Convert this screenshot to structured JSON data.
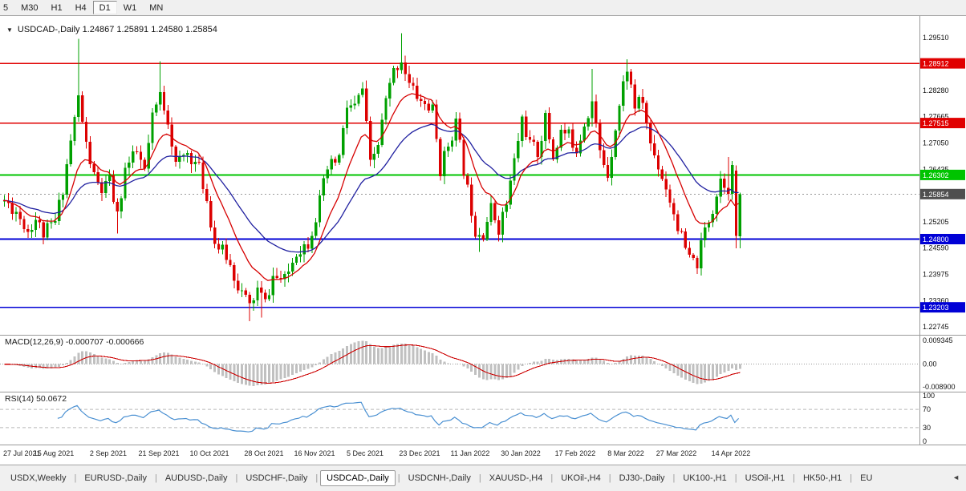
{
  "toolbar": {
    "periods": [
      {
        "label": "5",
        "active": false
      },
      {
        "label": "M30",
        "active": false
      },
      {
        "label": "H1",
        "active": false
      },
      {
        "label": "H4",
        "active": false
      },
      {
        "label": "D1",
        "active": true
      },
      {
        "label": "W1",
        "active": false
      },
      {
        "label": "MN",
        "active": false
      }
    ]
  },
  "symbol_overlay": {
    "collapse_icon": "▼",
    "text": "USDCAD-,Daily 1.24867 1.25891 1.24580 1.25854"
  },
  "indicators": {
    "macd_label": "MACD(12,26,9) -0.000707 -0.000666",
    "rsi_label": "RSI(14) 50.0672"
  },
  "chart_data": {
    "type": "candlestick",
    "symbol": "USDCAD-,Daily",
    "current_bar_ohlc": {
      "open": 1.24867,
      "high": 1.25891,
      "low": 1.2458,
      "close": 1.25854
    },
    "candle_count": 190,
    "seed": 11,
    "price_axis": {
      "min": 1.2256,
      "max": 1.3002,
      "tick_start": 1.2951,
      "tick_step": 0.00615,
      "tick_count": 12
    },
    "x_labels": [
      "27 Jul 2021",
      "15 Aug 2021",
      "2 Sep 2021",
      "21 Sep 2021",
      "10 Oct 2021",
      "28 Oct 2021",
      "16 Nov 2021",
      "5 Dec 2021",
      "23 Dec 2021",
      "11 Jan 2022",
      "30 Jan 2022",
      "17 Feb 2022",
      "8 Mar 2022",
      "27 Mar 2022",
      "14 Apr 2022"
    ],
    "x_label_indices": [
      0,
      13,
      27,
      40,
      53,
      67,
      80,
      93,
      107,
      120,
      133,
      147,
      160,
      173,
      187
    ],
    "close_anchors": [
      [
        0,
        1.257
      ],
      [
        3,
        1.2545
      ],
      [
        6,
        1.25
      ],
      [
        8,
        1.2528
      ],
      [
        10,
        1.2492
      ],
      [
        13,
        1.252
      ],
      [
        15,
        1.26
      ],
      [
        17,
        1.271
      ],
      [
        19,
        1.2812
      ],
      [
        21,
        1.27
      ],
      [
        23,
        1.2625
      ],
      [
        25,
        1.2592
      ],
      [
        27,
        1.2615
      ],
      [
        29,
        1.2532
      ],
      [
        31,
        1.2645
      ],
      [
        34,
        1.2682
      ],
      [
        36,
        1.2638
      ],
      [
        38,
        1.2762
      ],
      [
        40,
        1.2818
      ],
      [
        42,
        1.2762
      ],
      [
        44,
        1.2652
      ],
      [
        47,
        1.2682
      ],
      [
        50,
        1.2645
      ],
      [
        52,
        1.2572
      ],
      [
        54,
        1.2472
      ],
      [
        57,
        1.244
      ],
      [
        60,
        1.2372
      ],
      [
        63,
        1.2322
      ],
      [
        65,
        1.2362
      ],
      [
        67,
        1.233
      ],
      [
        69,
        1.2392
      ],
      [
        72,
        1.2382
      ],
      [
        75,
        1.2452
      ],
      [
        78,
        1.2472
      ],
      [
        80,
        1.2532
      ],
      [
        83,
        1.2642
      ],
      [
        86,
        1.2672
      ],
      [
        88,
        1.279
      ],
      [
        90,
        1.2788
      ],
      [
        92,
        1.2832
      ],
      [
        94,
        1.2652
      ],
      [
        96,
        1.2702
      ],
      [
        98,
        1.2802
      ],
      [
        100,
        1.2872
      ],
      [
        102,
        1.2902
      ],
      [
        104,
        1.2842
      ],
      [
        107,
        1.2802
      ],
      [
        110,
        1.2782
      ],
      [
        112,
        1.2642
      ],
      [
        114,
        1.2702
      ],
      [
        116,
        1.2752
      ],
      [
        118,
        1.2642
      ],
      [
        121,
        1.2502
      ],
      [
        123,
        1.2496
      ],
      [
        125,
        1.2552
      ],
      [
        127,
        1.2506
      ],
      [
        129,
        1.2562
      ],
      [
        131,
        1.2662
      ],
      [
        133,
        1.2762
      ],
      [
        135,
        1.2702
      ],
      [
        137,
        1.2682
      ],
      [
        139,
        1.2762
      ],
      [
        141,
        1.2672
      ],
      [
        143,
        1.2732
      ],
      [
        145,
        1.2722
      ],
      [
        147,
        1.2692
      ],
      [
        149,
        1.2752
      ],
      [
        151,
        1.2802
      ],
      [
        153,
        1.2682
      ],
      [
        155,
        1.2632
      ],
      [
        157,
        1.2742
      ],
      [
        159,
        1.2842
      ],
      [
        160,
        1.2882
      ],
      [
        162,
        1.2792
      ],
      [
        164,
        1.2802
      ],
      [
        166,
        1.2702
      ],
      [
        168,
        1.2652
      ],
      [
        170,
        1.2602
      ],
      [
        172,
        1.2542
      ],
      [
        174,
        1.2482
      ],
      [
        176,
        1.2432
      ],
      [
        178,
        1.2422
      ],
      [
        180,
        1.2502
      ],
      [
        182,
        1.2552
      ],
      [
        184,
        1.2622
      ],
      [
        186,
        1.2602
      ],
      [
        187,
        1.2642
      ],
      [
        188,
        1.2487
      ],
      [
        189,
        1.25854
      ]
    ],
    "spike_highs": [
      [
        19,
        1.2949
      ],
      [
        40,
        1.2896
      ],
      [
        102,
        1.2962
      ],
      [
        151,
        1.2878
      ],
      [
        160,
        1.2901
      ],
      [
        186,
        1.2672
      ]
    ],
    "spike_lows": [
      [
        29,
        1.2493
      ],
      [
        63,
        1.2288
      ],
      [
        66,
        1.2296
      ],
      [
        122,
        1.245
      ],
      [
        178,
        1.2398
      ]
    ],
    "final_candles": {
      "188": [
        1.264,
        1.2652,
        1.2458,
        1.2487
      ],
      "189": [
        1.24867,
        1.25891,
        1.2458,
        1.25854
      ]
    },
    "levels": [
      {
        "price": 1.28912,
        "label": "1.28912",
        "color": "#e00000",
        "width": 1.4
      },
      {
        "price": 1.27515,
        "label": "1.27515",
        "color": "#e00000",
        "width": 1.4
      },
      {
        "price": 1.26302,
        "label": "1.26302",
        "color": "#00c400",
        "width": 2
      },
      {
        "price": 1.248,
        "label": "1.24800",
        "color": "#0000d6",
        "width": 2
      },
      {
        "price": 1.23203,
        "label": "1.23203",
        "color": "#0000d6",
        "width": 1.4
      }
    ],
    "bid": {
      "price": 1.25854,
      "label": "1.25854",
      "badge_color": "#4f4f4f"
    },
    "ma_fast_period": 12,
    "ma_slow_period": 30,
    "macd": {
      "fast": 12,
      "slow": 26,
      "signal": 9,
      "range": [
        -0.0089,
        0.009345
      ],
      "scale_labels": [
        [
          "0.009345",
          0.009345
        ],
        [
          "0.00",
          0
        ],
        [
          "-0.008900",
          -0.0089
        ]
      ]
    },
    "rsi": {
      "period": 14,
      "dashed_levels": [
        70,
        30
      ],
      "scale_labels": [
        [
          "100",
          100
        ],
        [
          "70",
          70
        ],
        [
          "30",
          30
        ],
        [
          "0",
          0
        ]
      ],
      "last_value": 50.0672
    },
    "colors": {
      "bull": "#00a000",
      "bear": "#dc0000",
      "ma_fast": "#d60000",
      "ma_slow": "#2020a0",
      "macd_hist": "#c0c0c0",
      "macd_signal": "#cc0000",
      "rsi_line": "#4a90d2"
    }
  },
  "tabs": {
    "items": [
      "USDX,Weekly",
      "EURUSD-,Daily",
      "AUDUSD-,Daily",
      "USDCHF-,Daily",
      "USDCAD-,Daily",
      "USDCNH-,Daily",
      "XAUUSD-,H4",
      "UKOil-,H4",
      "DJ30-,Daily",
      "UK100-,H1",
      "USOil-,H1",
      "HK50-,H1",
      "EU"
    ],
    "active_index": 4,
    "scroll_icon": "◄"
  }
}
